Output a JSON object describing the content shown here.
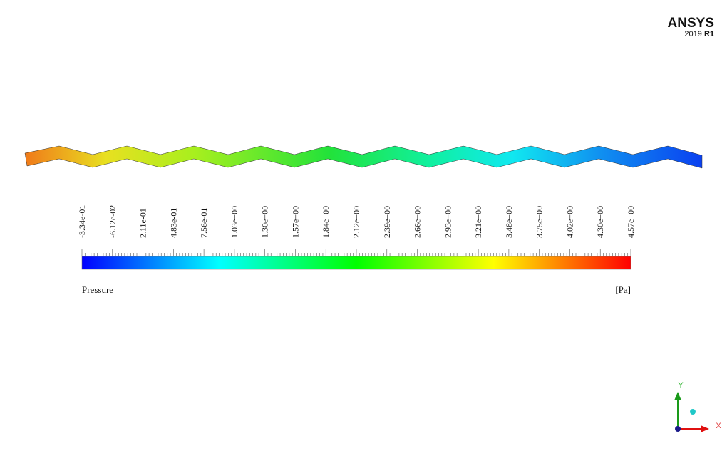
{
  "logo": {
    "brand": "ANSYS",
    "year": "2019",
    "release": "R1"
  },
  "colorbar": {
    "ticks": [
      "-3.34e-01",
      "-6.12e-02",
      "2.11e-01",
      "4.83e-01",
      "7.56e-01",
      "1.03e+00",
      "1.30e+00",
      "1.57e+00",
      "1.84e+00",
      "2.12e+00",
      "2.39e+00",
      "2.66e+00",
      "2.93e+00",
      "3.21e+00",
      "3.48e+00",
      "3.75e+00",
      "4.02e+00",
      "4.30e+00",
      "4.57e+00"
    ],
    "label": "Pressure",
    "unit": "[Pa]"
  },
  "triad": {
    "y": "Y",
    "x": "X"
  }
}
